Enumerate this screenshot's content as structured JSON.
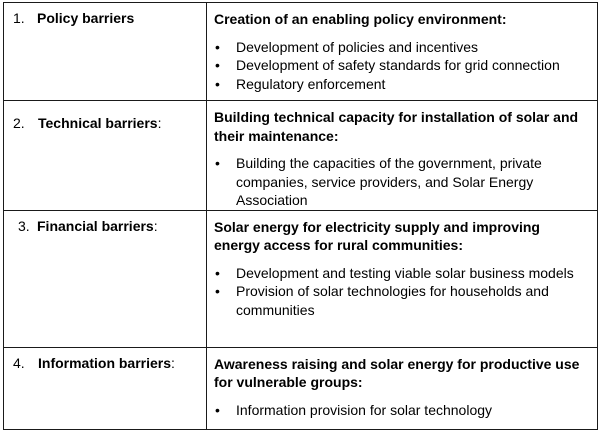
{
  "rows": [
    {
      "number": "1.",
      "barrier": "Policy barriers",
      "colon": "",
      "heading": "Creation of an enabling policy environment:",
      "bullets": [
        "Development of policies and incentives",
        "Development of safety standards for grid connection",
        "Regulatory enforcement"
      ]
    },
    {
      "number": "2.",
      "barrier": "Technical barriers",
      "colon": ":",
      "heading": "Building technical capacity for installation of solar and their maintenance:",
      "bullets": [
        "Building the capacities of the government, private companies, service providers, and Solar Energy Association"
      ]
    },
    {
      "number": "3.",
      "barrier": "Financial barriers",
      "colon": ":",
      "heading": "Solar energy for electricity supply and improving energy access for rural communities:",
      "bullets": [
        "Development and testing viable solar business models",
        "Provision of solar technologies for households and communities"
      ]
    },
    {
      "number": "4.",
      "barrier": "Information barriers",
      "colon": ":",
      "heading": "Awareness raising and solar energy for productive use for vulnerable groups:",
      "bullets": [
        "Information provision for solar technology"
      ]
    }
  ],
  "bullet_glyph": "•"
}
